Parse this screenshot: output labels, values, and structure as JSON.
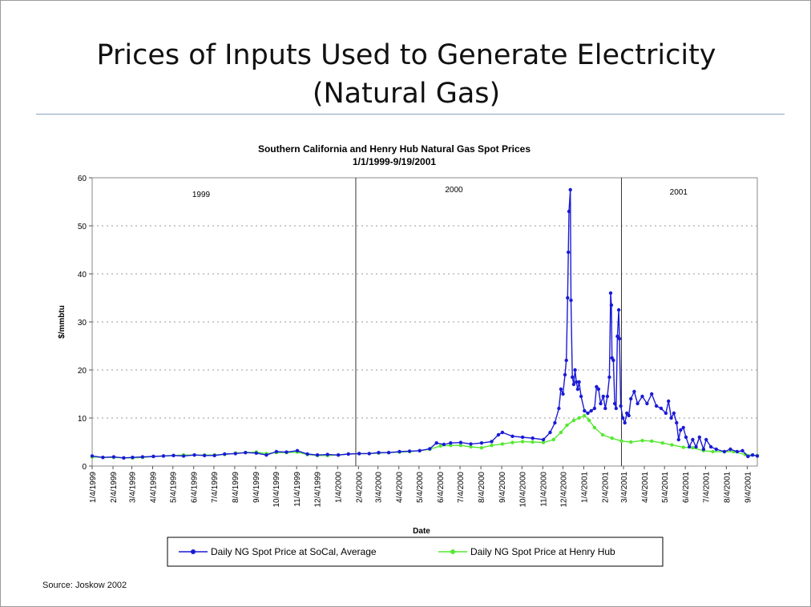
{
  "slide": {
    "title_line1": "Prices of Inputs Used to Generate Electricity",
    "title_line2": "(Natural Gas)",
    "source": "Source: Joskow 2002"
  },
  "colors": {
    "socal": "#1a1ad6",
    "henry_hub": "#55e831",
    "rule": "#8aa2bf"
  },
  "chart_data": {
    "type": "line",
    "title": "Southern California and Henry Hub Natural Gas Spot Prices",
    "subtitle": "1/1/1999-9/19/2001",
    "xlabel": "Date",
    "ylabel": "$/mmbtu",
    "ylim": [
      0,
      60
    ],
    "xlim": [
      "1999-01-04",
      "2001-09-19"
    ],
    "yticks": [
      0,
      10,
      20,
      30,
      40,
      50,
      60
    ],
    "grid": "dotted horizontal",
    "legend_position": "bottom",
    "x_tick_labels": [
      "1/4/1999",
      "2/4/1999",
      "3/4/1999",
      "4/4/1999",
      "5/4/1999",
      "6/4/1999",
      "7/4/1999",
      "8/4/1999",
      "9/4/1999",
      "10/4/1999",
      "11/4/1999",
      "12/4/1999",
      "1/4/2000",
      "2/4/2000",
      "3/4/2000",
      "4/4/2000",
      "5/4/2000",
      "6/4/2000",
      "7/4/2000",
      "8/4/2000",
      "9/4/2000",
      "10/4/2000",
      "11/4/2000",
      "12/4/2000",
      "1/4/2001",
      "2/4/2001",
      "3/4/2001",
      "4/4/2001",
      "5/4/2001",
      "6/4/2001",
      "7/4/2001",
      "8/4/2001",
      "9/4/2001"
    ],
    "annotations": [
      {
        "text": "1999",
        "x": "1999-06-15",
        "y": 56
      },
      {
        "text": "2000",
        "x": "2000-06-25",
        "y": 57
      },
      {
        "text": "2001",
        "x": "2001-05-25",
        "y": 56.5
      }
    ],
    "year_dividers": [
      "2000-01-31",
      "2001-03-01"
    ],
    "series": [
      {
        "name": "Daily NG Spot Price at SoCal, Average",
        "points": [
          [
            "1999-01-04",
            2.1
          ],
          [
            "1999-01-20",
            1.8
          ],
          [
            "1999-02-05",
            1.9
          ],
          [
            "1999-02-20",
            1.7
          ],
          [
            "1999-03-05",
            1.8
          ],
          [
            "1999-03-20",
            1.9
          ],
          [
            "1999-04-05",
            2.0
          ],
          [
            "1999-04-20",
            2.1
          ],
          [
            "1999-05-05",
            2.2
          ],
          [
            "1999-05-20",
            2.1
          ],
          [
            "1999-06-05",
            2.3
          ],
          [
            "1999-06-20",
            2.2
          ],
          [
            "1999-07-05",
            2.2
          ],
          [
            "1999-07-20",
            2.5
          ],
          [
            "1999-08-05",
            2.6
          ],
          [
            "1999-08-20",
            2.8
          ],
          [
            "1999-09-05",
            2.7
          ],
          [
            "1999-09-20",
            2.3
          ],
          [
            "1999-10-05",
            3.0
          ],
          [
            "1999-10-20",
            2.9
          ],
          [
            "1999-11-05",
            3.2
          ],
          [
            "1999-11-20",
            2.5
          ],
          [
            "1999-12-05",
            2.3
          ],
          [
            "1999-12-20",
            2.4
          ],
          [
            "2000-01-05",
            2.3
          ],
          [
            "2000-01-20",
            2.5
          ],
          [
            "2000-02-05",
            2.6
          ],
          [
            "2000-02-20",
            2.6
          ],
          [
            "2000-03-05",
            2.8
          ],
          [
            "2000-03-20",
            2.8
          ],
          [
            "2000-04-05",
            3.0
          ],
          [
            "2000-04-20",
            3.1
          ],
          [
            "2000-05-05",
            3.2
          ],
          [
            "2000-05-20",
            3.6
          ],
          [
            "2000-05-30",
            4.8
          ],
          [
            "2000-06-10",
            4.5
          ],
          [
            "2000-06-20",
            4.8
          ],
          [
            "2000-07-05",
            4.9
          ],
          [
            "2000-07-20",
            4.6
          ],
          [
            "2000-08-05",
            4.8
          ],
          [
            "2000-08-20",
            5.1
          ],
          [
            "2000-08-30",
            6.5
          ],
          [
            "2000-09-05",
            7.0
          ],
          [
            "2000-09-20",
            6.2
          ],
          [
            "2000-10-05",
            6.0
          ],
          [
            "2000-10-20",
            5.8
          ],
          [
            "2000-11-05",
            5.5
          ],
          [
            "2000-11-15",
            7.0
          ],
          [
            "2000-11-22",
            9.0
          ],
          [
            "2000-11-28",
            12.0
          ],
          [
            "2000-12-01",
            16.0
          ],
          [
            "2000-12-04",
            15.0
          ],
          [
            "2000-12-07",
            19.0
          ],
          [
            "2000-12-09",
            22.0
          ],
          [
            "2000-12-11",
            35.0
          ],
          [
            "2000-12-12",
            44.5
          ],
          [
            "2000-12-13",
            53.0
          ],
          [
            "2000-12-15",
            57.5
          ],
          [
            "2000-12-16",
            34.5
          ],
          [
            "2000-12-18",
            18.5
          ],
          [
            "2000-12-20",
            17.0
          ],
          [
            "2000-12-22",
            20.0
          ],
          [
            "2000-12-24",
            17.5
          ],
          [
            "2000-12-26",
            16.0
          ],
          [
            "2000-12-28",
            17.5
          ],
          [
            "2000-12-31",
            14.5
          ],
          [
            "2001-01-05",
            11.5
          ],
          [
            "2001-01-10",
            11.0
          ],
          [
            "2001-01-15",
            11.5
          ],
          [
            "2001-01-20",
            12.0
          ],
          [
            "2001-01-23",
            16.5
          ],
          [
            "2001-01-26",
            16.0
          ],
          [
            "2001-01-29",
            13.0
          ],
          [
            "2001-02-02",
            14.5
          ],
          [
            "2001-02-05",
            12.0
          ],
          [
            "2001-02-08",
            14.5
          ],
          [
            "2001-02-11",
            18.5
          ],
          [
            "2001-02-13",
            36.0
          ],
          [
            "2001-02-14",
            33.5
          ],
          [
            "2001-02-15",
            22.5
          ],
          [
            "2001-02-17",
            22.0
          ],
          [
            "2001-02-19",
            13.0
          ],
          [
            "2001-02-21",
            12.0
          ],
          [
            "2001-02-23",
            27.0
          ],
          [
            "2001-02-25",
            32.5
          ],
          [
            "2001-02-26",
            26.5
          ],
          [
            "2001-02-28",
            12.5
          ],
          [
            "2001-03-03",
            10.0
          ],
          [
            "2001-03-06",
            9.0
          ],
          [
            "2001-03-09",
            11.0
          ],
          [
            "2001-03-12",
            10.5
          ],
          [
            "2001-03-15",
            14.0
          ],
          [
            "2001-03-20",
            15.5
          ],
          [
            "2001-03-25",
            13.0
          ],
          [
            "2001-04-01",
            14.5
          ],
          [
            "2001-04-08",
            13.0
          ],
          [
            "2001-04-15",
            15.0
          ],
          [
            "2001-04-22",
            12.5
          ],
          [
            "2001-04-29",
            12.0
          ],
          [
            "2001-05-06",
            11.0
          ],
          [
            "2001-05-10",
            13.5
          ],
          [
            "2001-05-14",
            10.0
          ],
          [
            "2001-05-18",
            11.0
          ],
          [
            "2001-05-22",
            9.0
          ],
          [
            "2001-05-25",
            5.5
          ],
          [
            "2001-05-28",
            7.5
          ],
          [
            "2001-06-01",
            8.0
          ],
          [
            "2001-06-05",
            6.0
          ],
          [
            "2001-06-10",
            4.0
          ],
          [
            "2001-06-15",
            5.5
          ],
          [
            "2001-06-20",
            4.0
          ],
          [
            "2001-06-25",
            6.0
          ],
          [
            "2001-07-01",
            3.5
          ],
          [
            "2001-07-05",
            5.5
          ],
          [
            "2001-07-12",
            4.0
          ],
          [
            "2001-07-20",
            3.5
          ],
          [
            "2001-08-01",
            3.0
          ],
          [
            "2001-08-10",
            3.5
          ],
          [
            "2001-08-20",
            3.0
          ],
          [
            "2001-08-28",
            3.2
          ],
          [
            "2001-09-05",
            2.0
          ],
          [
            "2001-09-12",
            2.3
          ],
          [
            "2001-09-19",
            2.1
          ]
        ]
      },
      {
        "name": "Daily NG Spot Price at Henry Hub",
        "points": [
          [
            "1999-01-04",
            1.9
          ],
          [
            "1999-01-20",
            1.8
          ],
          [
            "1999-02-05",
            1.8
          ],
          [
            "1999-02-20",
            1.7
          ],
          [
            "1999-03-05",
            1.7
          ],
          [
            "1999-03-20",
            1.8
          ],
          [
            "1999-04-05",
            2.0
          ],
          [
            "1999-04-20",
            2.1
          ],
          [
            "1999-05-05",
            2.2
          ],
          [
            "1999-05-20",
            2.3
          ],
          [
            "1999-06-05",
            2.3
          ],
          [
            "1999-06-20",
            2.3
          ],
          [
            "1999-07-05",
            2.3
          ],
          [
            "1999-07-20",
            2.4
          ],
          [
            "1999-08-05",
            2.7
          ],
          [
            "1999-08-20",
            2.8
          ],
          [
            "1999-09-05",
            2.9
          ],
          [
            "1999-09-20",
            2.6
          ],
          [
            "1999-10-05",
            2.8
          ],
          [
            "1999-10-20",
            2.8
          ],
          [
            "1999-11-05",
            2.9
          ],
          [
            "1999-11-20",
            2.4
          ],
          [
            "1999-12-05",
            2.2
          ],
          [
            "1999-12-20",
            2.2
          ],
          [
            "2000-01-05",
            2.3
          ],
          [
            "2000-01-20",
            2.5
          ],
          [
            "2000-02-05",
            2.6
          ],
          [
            "2000-02-20",
            2.6
          ],
          [
            "2000-03-05",
            2.7
          ],
          [
            "2000-03-20",
            2.8
          ],
          [
            "2000-04-05",
            2.9
          ],
          [
            "2000-04-20",
            3.0
          ],
          [
            "2000-05-05",
            3.2
          ],
          [
            "2000-05-20",
            3.5
          ],
          [
            "2000-06-05",
            4.2
          ],
          [
            "2000-06-20",
            4.3
          ],
          [
            "2000-07-05",
            4.3
          ],
          [
            "2000-07-20",
            4.0
          ],
          [
            "2000-08-05",
            3.8
          ],
          [
            "2000-08-20",
            4.3
          ],
          [
            "2000-09-05",
            4.6
          ],
          [
            "2000-09-20",
            4.9
          ],
          [
            "2000-10-05",
            5.1
          ],
          [
            "2000-10-20",
            5.0
          ],
          [
            "2000-11-05",
            4.9
          ],
          [
            "2000-11-20",
            5.5
          ],
          [
            "2000-12-01",
            7.0
          ],
          [
            "2000-12-10",
            8.5
          ],
          [
            "2000-12-20",
            9.5
          ],
          [
            "2000-12-28",
            10.0
          ],
          [
            "2001-01-05",
            10.5
          ],
          [
            "2001-01-12",
            9.5
          ],
          [
            "2001-01-20",
            8.0
          ],
          [
            "2001-02-01",
            6.5
          ],
          [
            "2001-02-15",
            5.8
          ],
          [
            "2001-03-01",
            5.2
          ],
          [
            "2001-03-15",
            5.0
          ],
          [
            "2001-04-01",
            5.3
          ],
          [
            "2001-04-15",
            5.2
          ],
          [
            "2001-05-01",
            4.8
          ],
          [
            "2001-05-15",
            4.4
          ],
          [
            "2001-06-01",
            3.9
          ],
          [
            "2001-06-15",
            3.8
          ],
          [
            "2001-07-01",
            3.2
          ],
          [
            "2001-07-15",
            3.0
          ],
          [
            "2001-08-01",
            3.0
          ],
          [
            "2001-08-15",
            3.0
          ],
          [
            "2001-09-01",
            2.4
          ],
          [
            "2001-09-19",
            2.2
          ]
        ]
      }
    ]
  }
}
